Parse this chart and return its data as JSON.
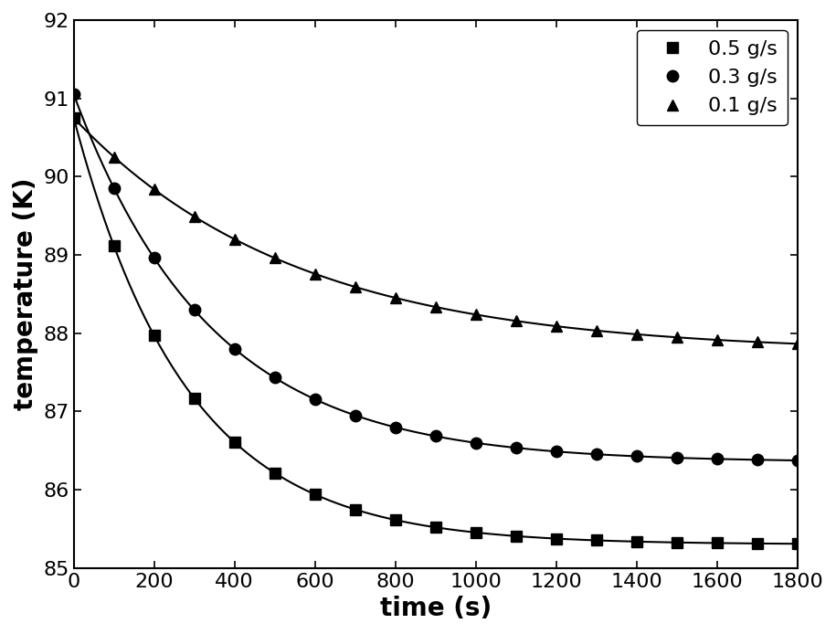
{
  "title": "",
  "xlabel": "time (s)",
  "ylabel": "temperature (K)",
  "xlim": [
    0,
    1800
  ],
  "ylim": [
    85,
    92
  ],
  "yticks": [
    85,
    86,
    87,
    88,
    89,
    90,
    91,
    92
  ],
  "xticks": [
    0,
    200,
    400,
    600,
    800,
    1000,
    1200,
    1400,
    1600,
    1800
  ],
  "legend_labels": [
    "0.5 g/s",
    "0.3 g/s",
    "0.1 g/s"
  ],
  "markers": [
    "s",
    "o",
    "^"
  ],
  "line_color": "#000000",
  "series": {
    "0.5": {
      "T0": 90.75,
      "Tinf": 85.3,
      "tau": 280
    },
    "0.3": {
      "T0": 91.05,
      "Tinf": 86.35,
      "tau": 340
    },
    "0.1": {
      "T0": 90.75,
      "Tinf": 87.75,
      "tau": 550
    }
  },
  "marker_times": [
    0,
    100,
    200,
    300,
    400,
    500,
    600,
    700,
    800,
    900,
    1000,
    1100,
    1200,
    1300,
    1400,
    1500,
    1600,
    1700,
    1800
  ],
  "background_color": "#ffffff",
  "xlabel_fontsize": 20,
  "ylabel_fontsize": 20,
  "tick_fontsize": 16,
  "legend_fontsize": 16,
  "linewidth": 1.5,
  "markersize": 9
}
